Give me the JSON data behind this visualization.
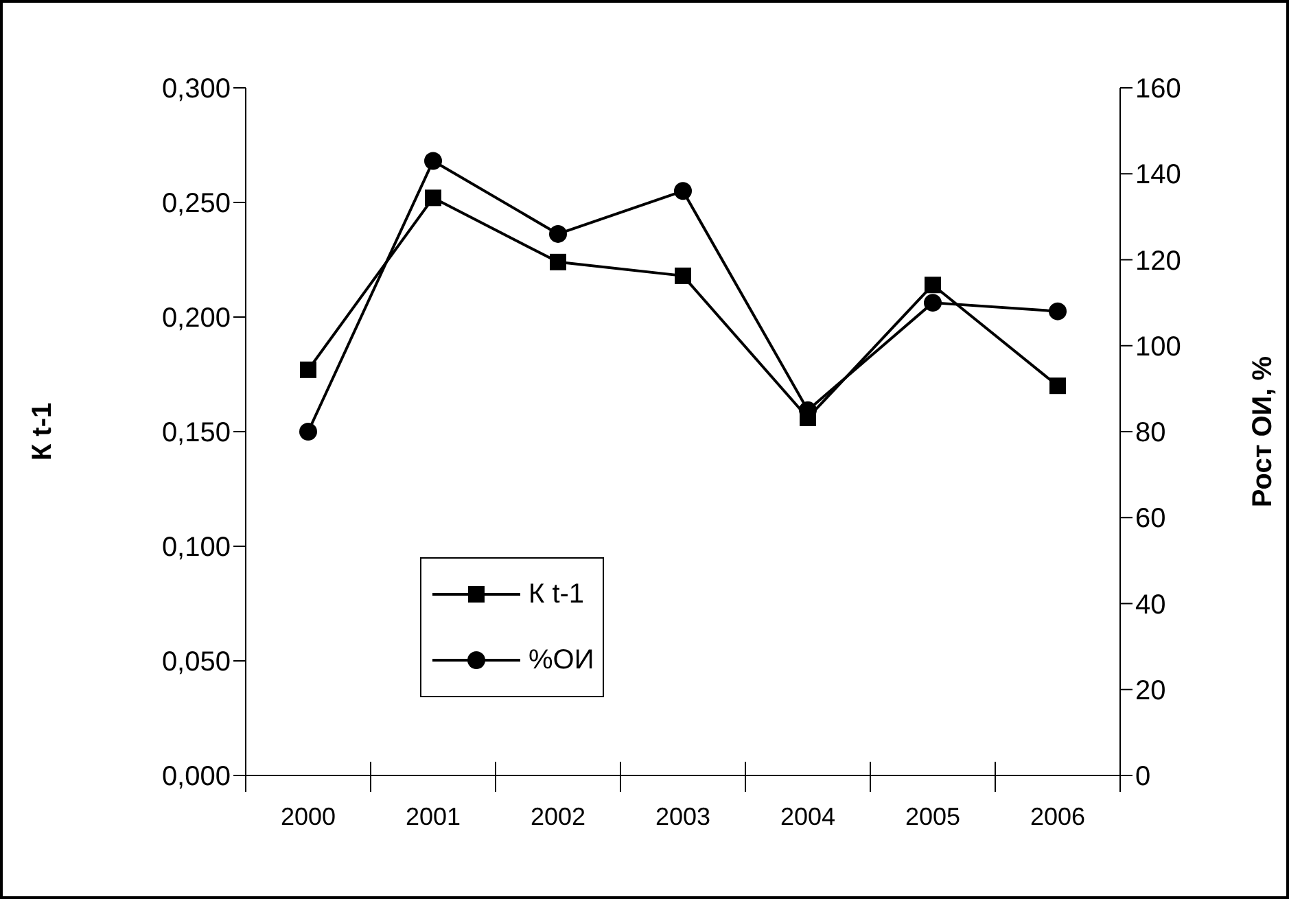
{
  "chart_data": {
    "type": "line",
    "categories": [
      "2000",
      "2001",
      "2002",
      "2003",
      "2004",
      "2005",
      "2006"
    ],
    "ylabel": "К t-1",
    "y2label": "Рост ОИ, %",
    "ylim": [
      0,
      0.3
    ],
    "yticks": [
      {
        "value": 0,
        "label": "0,000"
      },
      {
        "value": 0.05,
        "label": "0,050"
      },
      {
        "value": 0.1,
        "label": "0,100"
      },
      {
        "value": 0.15,
        "label": "0,150"
      },
      {
        "value": 0.2,
        "label": "0,200"
      },
      {
        "value": 0.25,
        "label": "0,250"
      },
      {
        "value": 0.3,
        "label": "0,300"
      }
    ],
    "y2lim": [
      0,
      160
    ],
    "y2ticks": [
      0,
      20,
      40,
      60,
      80,
      100,
      120,
      140,
      160
    ],
    "legend": "bottom left",
    "grid": false,
    "line_style": "solid",
    "series": [
      {
        "name": "К t-1",
        "color": "#000000",
        "marker": "square",
        "values": [
          0.177,
          0.252,
          0.224,
          0.218,
          0.156,
          0.214,
          0.17
        ]
      },
      {
        "name": "%ОИ",
        "color": "#000000",
        "marker": "circle",
        "axis": "y2",
        "values": [
          80,
          143,
          126,
          136,
          85,
          110,
          108
        ]
      }
    ]
  }
}
